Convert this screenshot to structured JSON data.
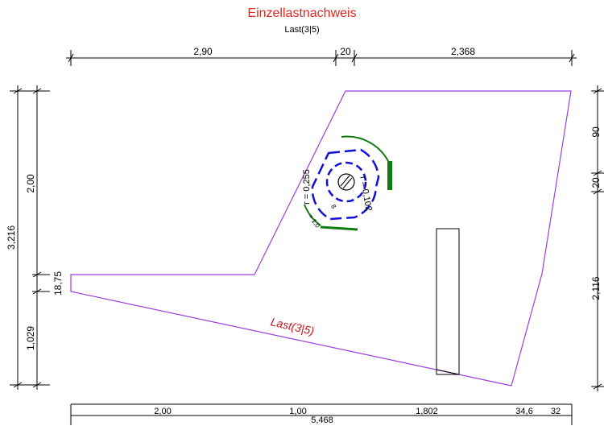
{
  "title": "Einzellastnachweis",
  "subtitle": "Last(3|5)",
  "top_dims": [
    "2,90",
    "20",
    "2,368"
  ],
  "left_dims": {
    "total": "3,216",
    "upper": "2,00",
    "mid": "18,75",
    "lower": "1,029"
  },
  "right_dims": [
    "90",
    "20",
    "2,116"
  ],
  "bottom_dims": {
    "segments": [
      "2,00",
      "1,00",
      "1,802",
      "34,6",
      "32"
    ],
    "total": "5,468"
  },
  "load_label": "Last(3|5)",
  "radius_labels": {
    "outer": "r = 0,255",
    "inner": "r = 0,102",
    "small_a": "8",
    "small_b": "= 1,0"
  },
  "colors": {
    "outline": "#9b3fe0",
    "title": "#e8261c",
    "label": "#c81818",
    "blue": "#1010d8",
    "green": "#107c10"
  }
}
